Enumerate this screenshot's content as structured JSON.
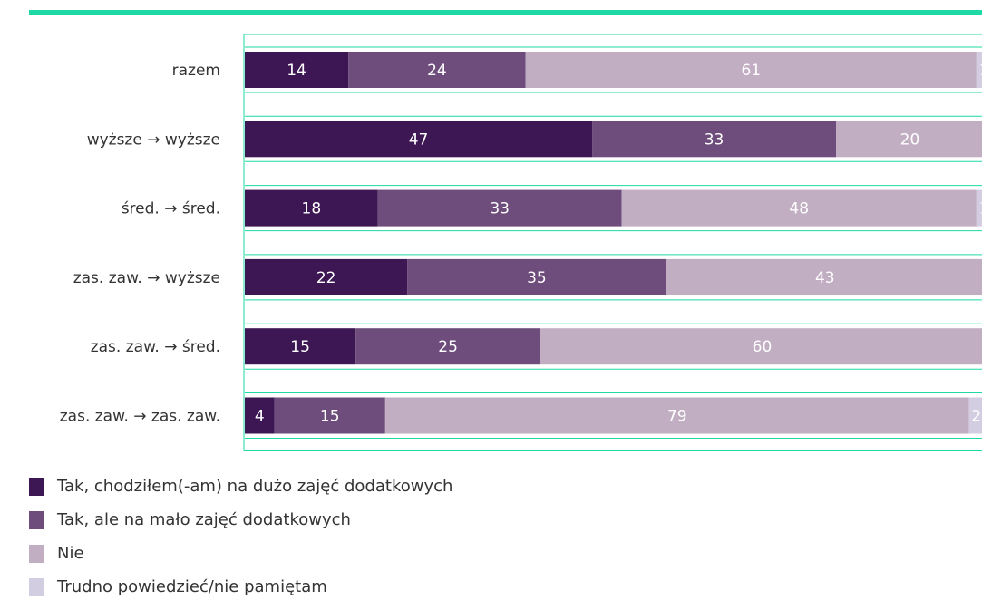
{
  "chart_data": {
    "type": "bar",
    "orientation": "horizontal",
    "stacked": true,
    "categories": [
      "razem",
      "wyższe → wyższe",
      "śred. → śred.",
      "zas. zaw. → wyższe",
      "zas. zaw. → śred.",
      "zas. zaw. → zas. zaw."
    ],
    "series": [
      {
        "name": "Tak, chodziłem(-am) na dużo zajęć dodatkowych",
        "values": [
          14,
          47,
          18,
          22,
          15,
          4
        ],
        "color": "#3d1654",
        "label_color": "#ffffff"
      },
      {
        "name": "Tak, ale na mało zajęć dodatkowych",
        "values": [
          24,
          33,
          33,
          35,
          25,
          15
        ],
        "color": "#6e4c7c",
        "label_color": "#ffffff"
      },
      {
        "name": "Nie",
        "values": [
          61,
          20,
          48,
          43,
          60,
          79
        ],
        "color": "#c2aec3",
        "label_color": "#ffffff"
      },
      {
        "name": "Trudno powiedzieć/nie pamiętam",
        "values": [
          1,
          null,
          1,
          null,
          null,
          2
        ],
        "color": "#d2cde0",
        "label_color": "#ffffff"
      }
    ],
    "xlim": [
      0,
      100
    ],
    "grid": false,
    "frame_color": "#1ed9a3",
    "legend_position": "bottom-left"
  }
}
